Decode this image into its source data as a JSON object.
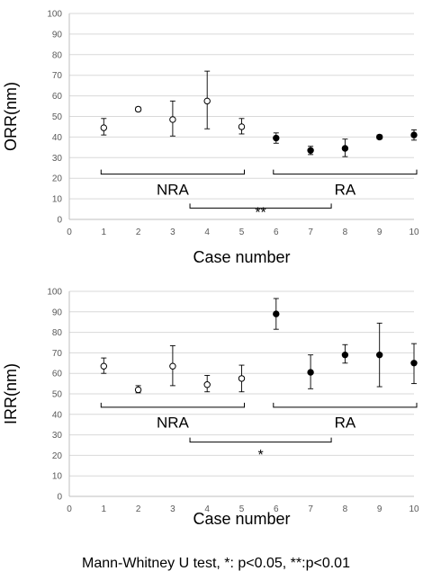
{
  "chart_data": [
    {
      "type": "scatter",
      "title": "",
      "xlabel": "Case number",
      "ylabel": "ORR(nm)",
      "xlim": [
        0,
        10
      ],
      "ylim": [
        0,
        100
      ],
      "xticks": [
        "0",
        "1",
        "2",
        "3",
        "4",
        "5",
        "6",
        "7",
        "8",
        "9",
        "10"
      ],
      "yticks": [
        "0",
        "10",
        "20",
        "30",
        "40",
        "50",
        "60",
        "70",
        "80",
        "90",
        "100"
      ],
      "grid": "horizontal",
      "points": [
        {
          "x": 1,
          "y": 44.5,
          "lo": 41,
          "hi": 49,
          "group": "NRA"
        },
        {
          "x": 2,
          "y": 53.5,
          "lo": 52.5,
          "hi": 54.5,
          "group": "NRA"
        },
        {
          "x": 3,
          "y": 48.5,
          "lo": 40.5,
          "hi": 57.5,
          "group": "NRA"
        },
        {
          "x": 4,
          "y": 57.5,
          "lo": 44,
          "hi": 72,
          "group": "NRA"
        },
        {
          "x": 5,
          "y": 45,
          "lo": 41.5,
          "hi": 49,
          "group": "NRA"
        },
        {
          "x": 6,
          "y": 39.5,
          "lo": 37,
          "hi": 42,
          "group": "RA"
        },
        {
          "x": 7,
          "y": 33.5,
          "lo": 31.5,
          "hi": 35.5,
          "group": "RA"
        },
        {
          "x": 8,
          "y": 34.5,
          "lo": 30.5,
          "hi": 39,
          "group": "RA"
        },
        {
          "x": 9,
          "y": 40,
          "lo": 39,
          "hi": 41,
          "group": "RA"
        },
        {
          "x": 10,
          "y": 41,
          "lo": 38.5,
          "hi": 43.5,
          "group": "RA"
        }
      ],
      "groups": [
        {
          "label": "NRA",
          "from": 1,
          "to": 5,
          "y": 22,
          "label_y": 12
        },
        {
          "label": "RA",
          "from": 6,
          "to": 10,
          "y": 22,
          "label_y": 12
        }
      ],
      "significance": {
        "label": "**",
        "from": 3.5,
        "to": 7.6,
        "y": 5.5,
        "label_y": 1
      }
    },
    {
      "type": "scatter",
      "title": "",
      "xlabel": "Case number",
      "ylabel": "IRR(nm)",
      "xlim": [
        0,
        10
      ],
      "ylim": [
        0,
        100
      ],
      "xticks": [
        "0",
        "1",
        "2",
        "3",
        "4",
        "5",
        "6",
        "7",
        "8",
        "9",
        "10"
      ],
      "yticks": [
        "0",
        "10",
        "20",
        "30",
        "40",
        "50",
        "60",
        "70",
        "80",
        "90",
        "100"
      ],
      "grid": "horizontal",
      "points": [
        {
          "x": 1,
          "y": 63.5,
          "lo": 60,
          "hi": 67.5,
          "group": "NRA"
        },
        {
          "x": 2,
          "y": 52,
          "lo": 50.5,
          "hi": 54,
          "group": "NRA"
        },
        {
          "x": 3,
          "y": 63.5,
          "lo": 54,
          "hi": 73.5,
          "group": "NRA"
        },
        {
          "x": 4,
          "y": 54.5,
          "lo": 51,
          "hi": 59,
          "group": "NRA"
        },
        {
          "x": 5,
          "y": 57.5,
          "lo": 51,
          "hi": 64,
          "group": "NRA"
        },
        {
          "x": 6,
          "y": 89,
          "lo": 81.5,
          "hi": 96.5,
          "group": "RA"
        },
        {
          "x": 7,
          "y": 60.5,
          "lo": 52.5,
          "hi": 69,
          "group": "RA"
        },
        {
          "x": 8,
          "y": 69,
          "lo": 65,
          "hi": 74,
          "group": "RA"
        },
        {
          "x": 9,
          "y": 69,
          "lo": 53.5,
          "hi": 84.5,
          "group": "RA"
        },
        {
          "x": 10,
          "y": 65,
          "lo": 55,
          "hi": 74.5,
          "group": "RA"
        }
      ],
      "groups": [
        {
          "label": "NRA",
          "from": 1,
          "to": 5,
          "y": 43.5,
          "label_y": 33.5
        },
        {
          "label": "RA",
          "from": 6,
          "to": 10,
          "y": 43.5,
          "label_y": 33.5
        }
      ],
      "significance": {
        "label": "*",
        "from": 3.5,
        "to": 7.6,
        "y": 26.5,
        "label_y": 18
      }
    }
  ],
  "colors": {
    "axis": "#bfbfbf",
    "grid": "#d9d9d9",
    "tick_text": "#595959",
    "marker": "#000000",
    "bracket": "#000000"
  },
  "footnote": "Mann-Whitney U test, *: p<0.05, **:p<0.01"
}
